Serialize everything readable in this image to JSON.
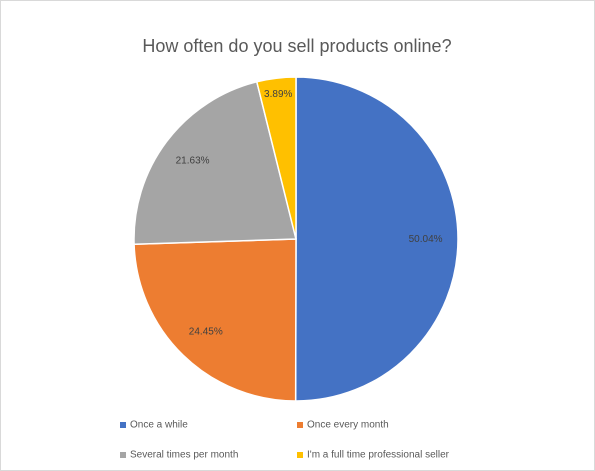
{
  "chart_data": {
    "type": "pie",
    "title": "How often do you sell products online?",
    "categories": [
      "Once a while",
      "Once every month",
      "Several times per month",
      "I'm a full time professional seller"
    ],
    "values": [
      50.04,
      24.45,
      21.63,
      3.89
    ],
    "value_labels": [
      "50.04%",
      "24.45%",
      "21.63%",
      "3.89%"
    ],
    "colors": [
      "#4472c4",
      "#ed7d31",
      "#a5a5a5",
      "#ffc000"
    ],
    "legend": "bottom"
  }
}
